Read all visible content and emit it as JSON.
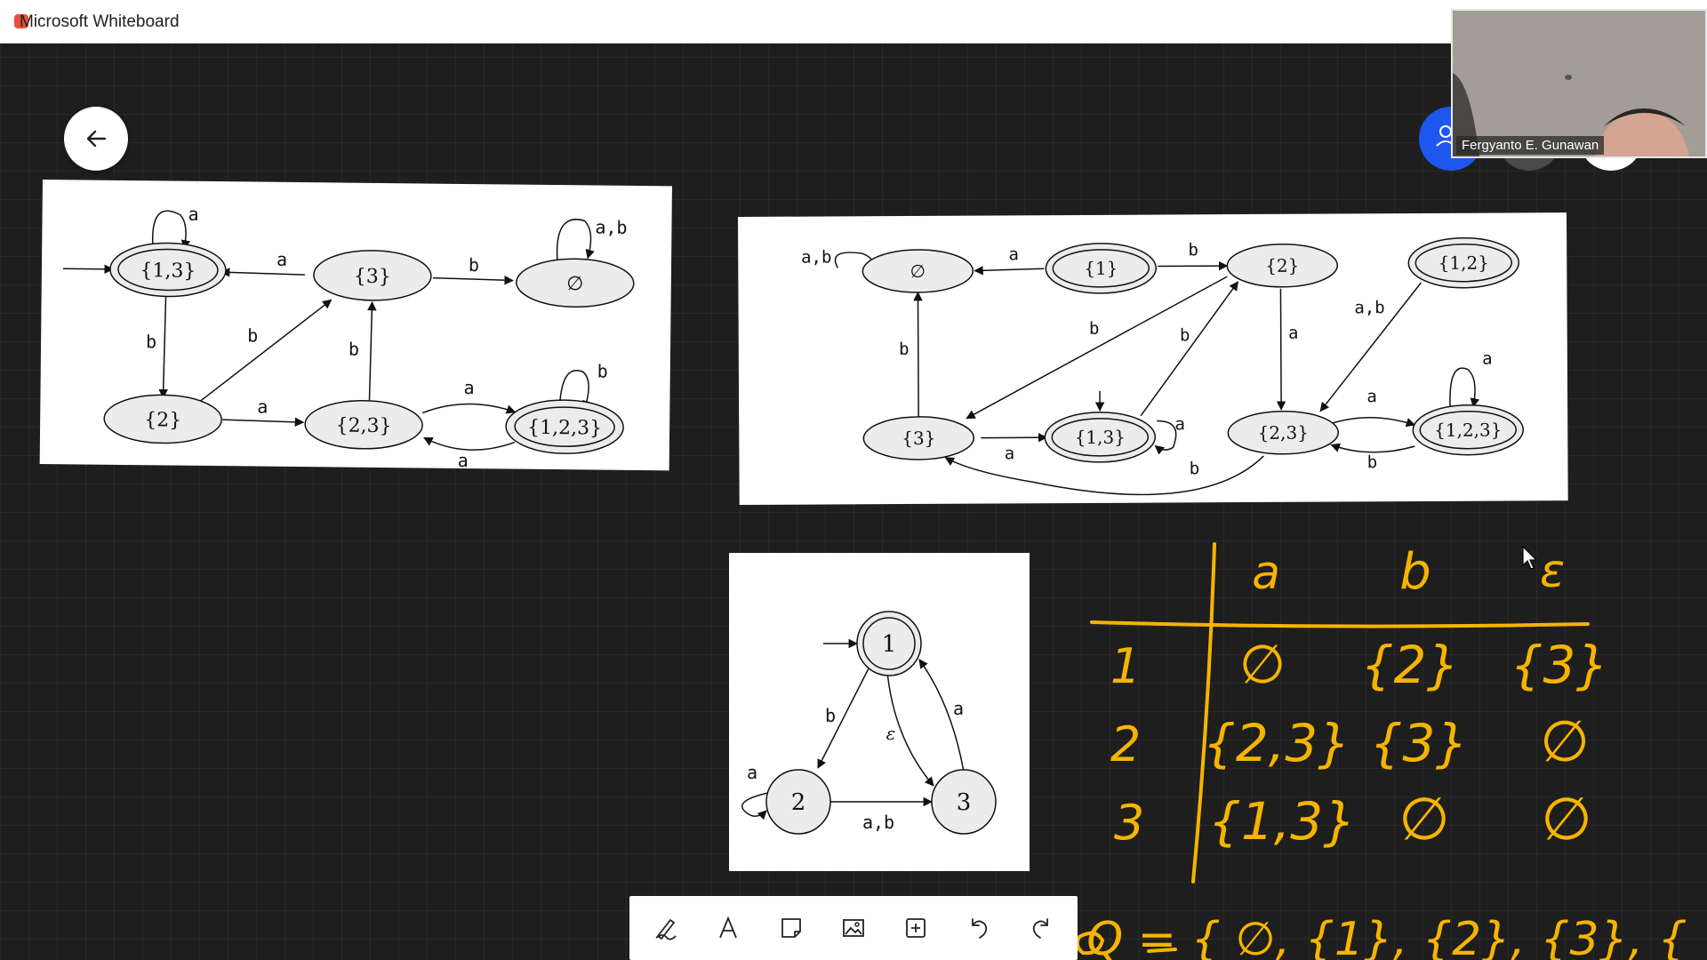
{
  "app": {
    "title": "Microsoft Whiteboard"
  },
  "colors": {
    "ink": "#f5b400",
    "accent_blue": "#1e56f0",
    "canvas": "#1e1e1e"
  },
  "icons": {
    "back": "arrow-left-icon",
    "toolbar": [
      "pen-icon",
      "text-icon",
      "sticky-note-icon",
      "image-icon",
      "add-icon",
      "undo-icon",
      "redo-icon"
    ]
  },
  "video": {
    "participant_name": "Fergyanto  E. Gunawan"
  },
  "diagram1": {
    "states": [
      "{1,3}",
      "{3}",
      "∅",
      "{2}",
      "{2,3}",
      "{1,2,3}"
    ],
    "edge_labels": [
      "a",
      "a",
      "b",
      "a,b",
      "b",
      "b",
      "b",
      "a",
      "a",
      "a",
      "b"
    ]
  },
  "diagram2": {
    "states": [
      "∅",
      "{1}",
      "{2}",
      "{1,2}",
      "{3}",
      "{1,3}",
      "{2,3}",
      "{1,2,3}"
    ],
    "edge_labels": [
      "a,b",
      "a",
      "b",
      "b",
      "b",
      "a",
      "a,b",
      "b",
      "a",
      "a",
      "a",
      "a",
      "b",
      "b"
    ]
  },
  "diagram3": {
    "states": [
      "1",
      "2",
      "3"
    ],
    "edge_labels": [
      "b",
      "ε",
      "a",
      "a",
      "a,b"
    ]
  },
  "handwriting": {
    "columns": [
      "a",
      "b",
      "ε"
    ],
    "rows": [
      {
        "state": "1",
        "cells": [
          "∅",
          "{2}",
          "{3}"
        ]
      },
      {
        "state": "2",
        "cells": [
          "{2,3}",
          "{3}",
          "∅"
        ]
      },
      {
        "state": "3",
        "cells": [
          "{1,3}",
          "∅",
          "∅"
        ]
      }
    ],
    "bottom_line": "Q = { ∅, {1}, {2}, {3}, {"
  }
}
